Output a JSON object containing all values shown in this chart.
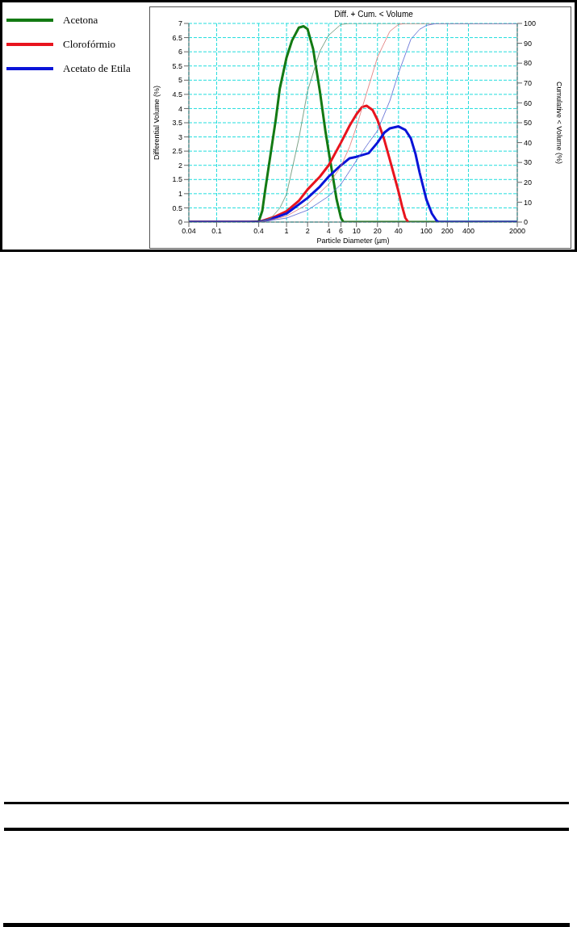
{
  "chart_data": {
    "type": "line",
    "title": "Diff. + Cum. < Volume",
    "xlabel": "Particle Diameter (µm)",
    "ylabel": "Differential Volume (%)",
    "y2label": "Cumulative < Volume (%)",
    "log": "x",
    "xlim": [
      0.04,
      2000
    ],
    "xticks": [
      0.04,
      0.1,
      0.4,
      1,
      2,
      4,
      6,
      10,
      20,
      40,
      100,
      200,
      400,
      2000
    ],
    "ylim": [
      0,
      7
    ],
    "yticks": [
      0,
      0.5,
      1,
      1.5,
      2,
      2.5,
      3,
      3.5,
      4,
      4.5,
      5,
      5.5,
      6,
      6.5,
      7
    ],
    "y2lim": [
      0,
      100
    ],
    "y2ticks": [
      0,
      10,
      20,
      30,
      40,
      50,
      60,
      70,
      80,
      90,
      100
    ],
    "grid": true,
    "legend": "left",
    "marker": "none",
    "line_style": "solid",
    "series": [
      {
        "name": "Acetona",
        "color": "#137a13",
        "x": [
          0.04,
          0.3,
          0.4,
          0.45,
          0.5,
          0.6,
          0.7,
          0.8,
          1.0,
          1.2,
          1.5,
          1.75,
          2.0,
          2.4,
          3.0,
          3.6,
          4.0,
          4.6,
          5.2,
          6.0,
          6.5,
          2000
        ],
        "values": [
          0,
          0,
          0.02,
          0.4,
          1.2,
          2.5,
          3.6,
          4.7,
          5.8,
          6.4,
          6.85,
          6.9,
          6.8,
          6.1,
          4.6,
          3.2,
          2.5,
          1.6,
          0.8,
          0.15,
          0,
          0
        ]
      },
      {
        "name": "Clorofórmio",
        "color": "#e8141e",
        "x": [
          0.04,
          0.4,
          0.5,
          0.7,
          1,
          1.5,
          2,
          3,
          4,
          6,
          8,
          10,
          12,
          14,
          17,
          20,
          25,
          30,
          35,
          40,
          45,
          50,
          55
        ],
        "values": [
          0,
          0,
          0.08,
          0.2,
          0.38,
          0.75,
          1.15,
          1.6,
          2.0,
          2.8,
          3.4,
          3.8,
          4.05,
          4.1,
          3.95,
          3.6,
          2.9,
          2.2,
          1.6,
          1.07,
          0.55,
          0.15,
          0
        ]
      },
      {
        "name": "Acetato de Etila",
        "color": "#0a14d8",
        "x": [
          0.04,
          0.4,
          0.6,
          1,
          2,
          3,
          4,
          6,
          8,
          10,
          15,
          20,
          25,
          30,
          40,
          50,
          60,
          70,
          80,
          100,
          120,
          140,
          150,
          2000
        ],
        "values": [
          0,
          0,
          0.1,
          0.3,
          0.85,
          1.25,
          1.6,
          2.0,
          2.25,
          2.3,
          2.43,
          2.8,
          3.15,
          3.3,
          3.37,
          3.25,
          2.95,
          2.4,
          1.75,
          0.8,
          0.3,
          0.05,
          0,
          0
        ]
      },
      {
        "color": "#5e8a6a",
        "axis": "y2",
        "x": [
          0.4,
          0.6,
          0.8,
          1,
          1.5,
          2,
          3,
          4,
          6,
          8,
          2000
        ],
        "values": [
          0,
          2,
          7,
          14,
          42,
          66,
          86,
          94,
          99.5,
          100,
          100
        ]
      },
      {
        "color": "#e07070",
        "axis": "y2",
        "x": [
          0.4,
          0.5,
          1,
          2,
          4,
          6,
          8,
          10,
          14,
          20,
          30,
          40,
          50,
          2000
        ],
        "values": [
          0,
          0.5,
          3,
          9,
          19,
          28,
          38,
          48,
          65,
          83,
          96,
          99.5,
          100,
          100
        ]
      },
      {
        "color": "#5060d0",
        "axis": "y2",
        "x": [
          0.4,
          0.5,
          1,
          2,
          4,
          6,
          10,
          15,
          20,
          30,
          40,
          60,
          80,
          100,
          140,
          2000
        ],
        "values": [
          0,
          0.5,
          2,
          6,
          13,
          19,
          31,
          40,
          46,
          61,
          75,
          92,
          97,
          99,
          100,
          100
        ]
      }
    ]
  }
}
